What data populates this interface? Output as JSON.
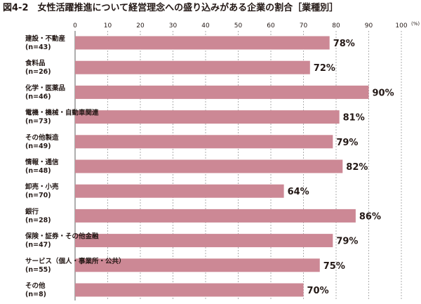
{
  "chart_data": {
    "type": "bar",
    "orientation": "horizontal",
    "title": "図4-2　女性活躍推進について経営理念への盛り込みがある企業の割合［業種別］",
    "unit": "(%)",
    "xlim": [
      0,
      100
    ],
    "ticks": [
      0,
      10,
      20,
      30,
      40,
      50,
      60,
      70,
      80,
      90,
      100
    ],
    "bar_color": "#cc8895",
    "grid": true,
    "categories": [
      {
        "name": "建設・不動産",
        "n": "(n=43)"
      },
      {
        "name": "食料品",
        "n": "(n=26)"
      },
      {
        "name": "化学・医薬品",
        "n": "(n=46)"
      },
      {
        "name": "電機・機械・自動車関連",
        "n": "(n=73)"
      },
      {
        "name": "その他製造",
        "n": "(n=49)"
      },
      {
        "name": "情報・通信",
        "n": "(n=48)"
      },
      {
        "name": "卸売・小売",
        "n": "(n=70)"
      },
      {
        "name": "銀行",
        "n": "(n=28)"
      },
      {
        "name": "保険・証券・その他金融",
        "n": "(n=47)"
      },
      {
        "name": "サービス（個人・事業所・公共）",
        "n": "(n=55)"
      },
      {
        "name": "その他",
        "n": "(n=8)"
      }
    ],
    "values": [
      78,
      72,
      90,
      81,
      79,
      82,
      64,
      86,
      79,
      75,
      70
    ],
    "value_labels": [
      "78%",
      "72%",
      "90%",
      "81%",
      "79%",
      "82%",
      "64%",
      "86%",
      "79%",
      "75%",
      "70%"
    ]
  }
}
